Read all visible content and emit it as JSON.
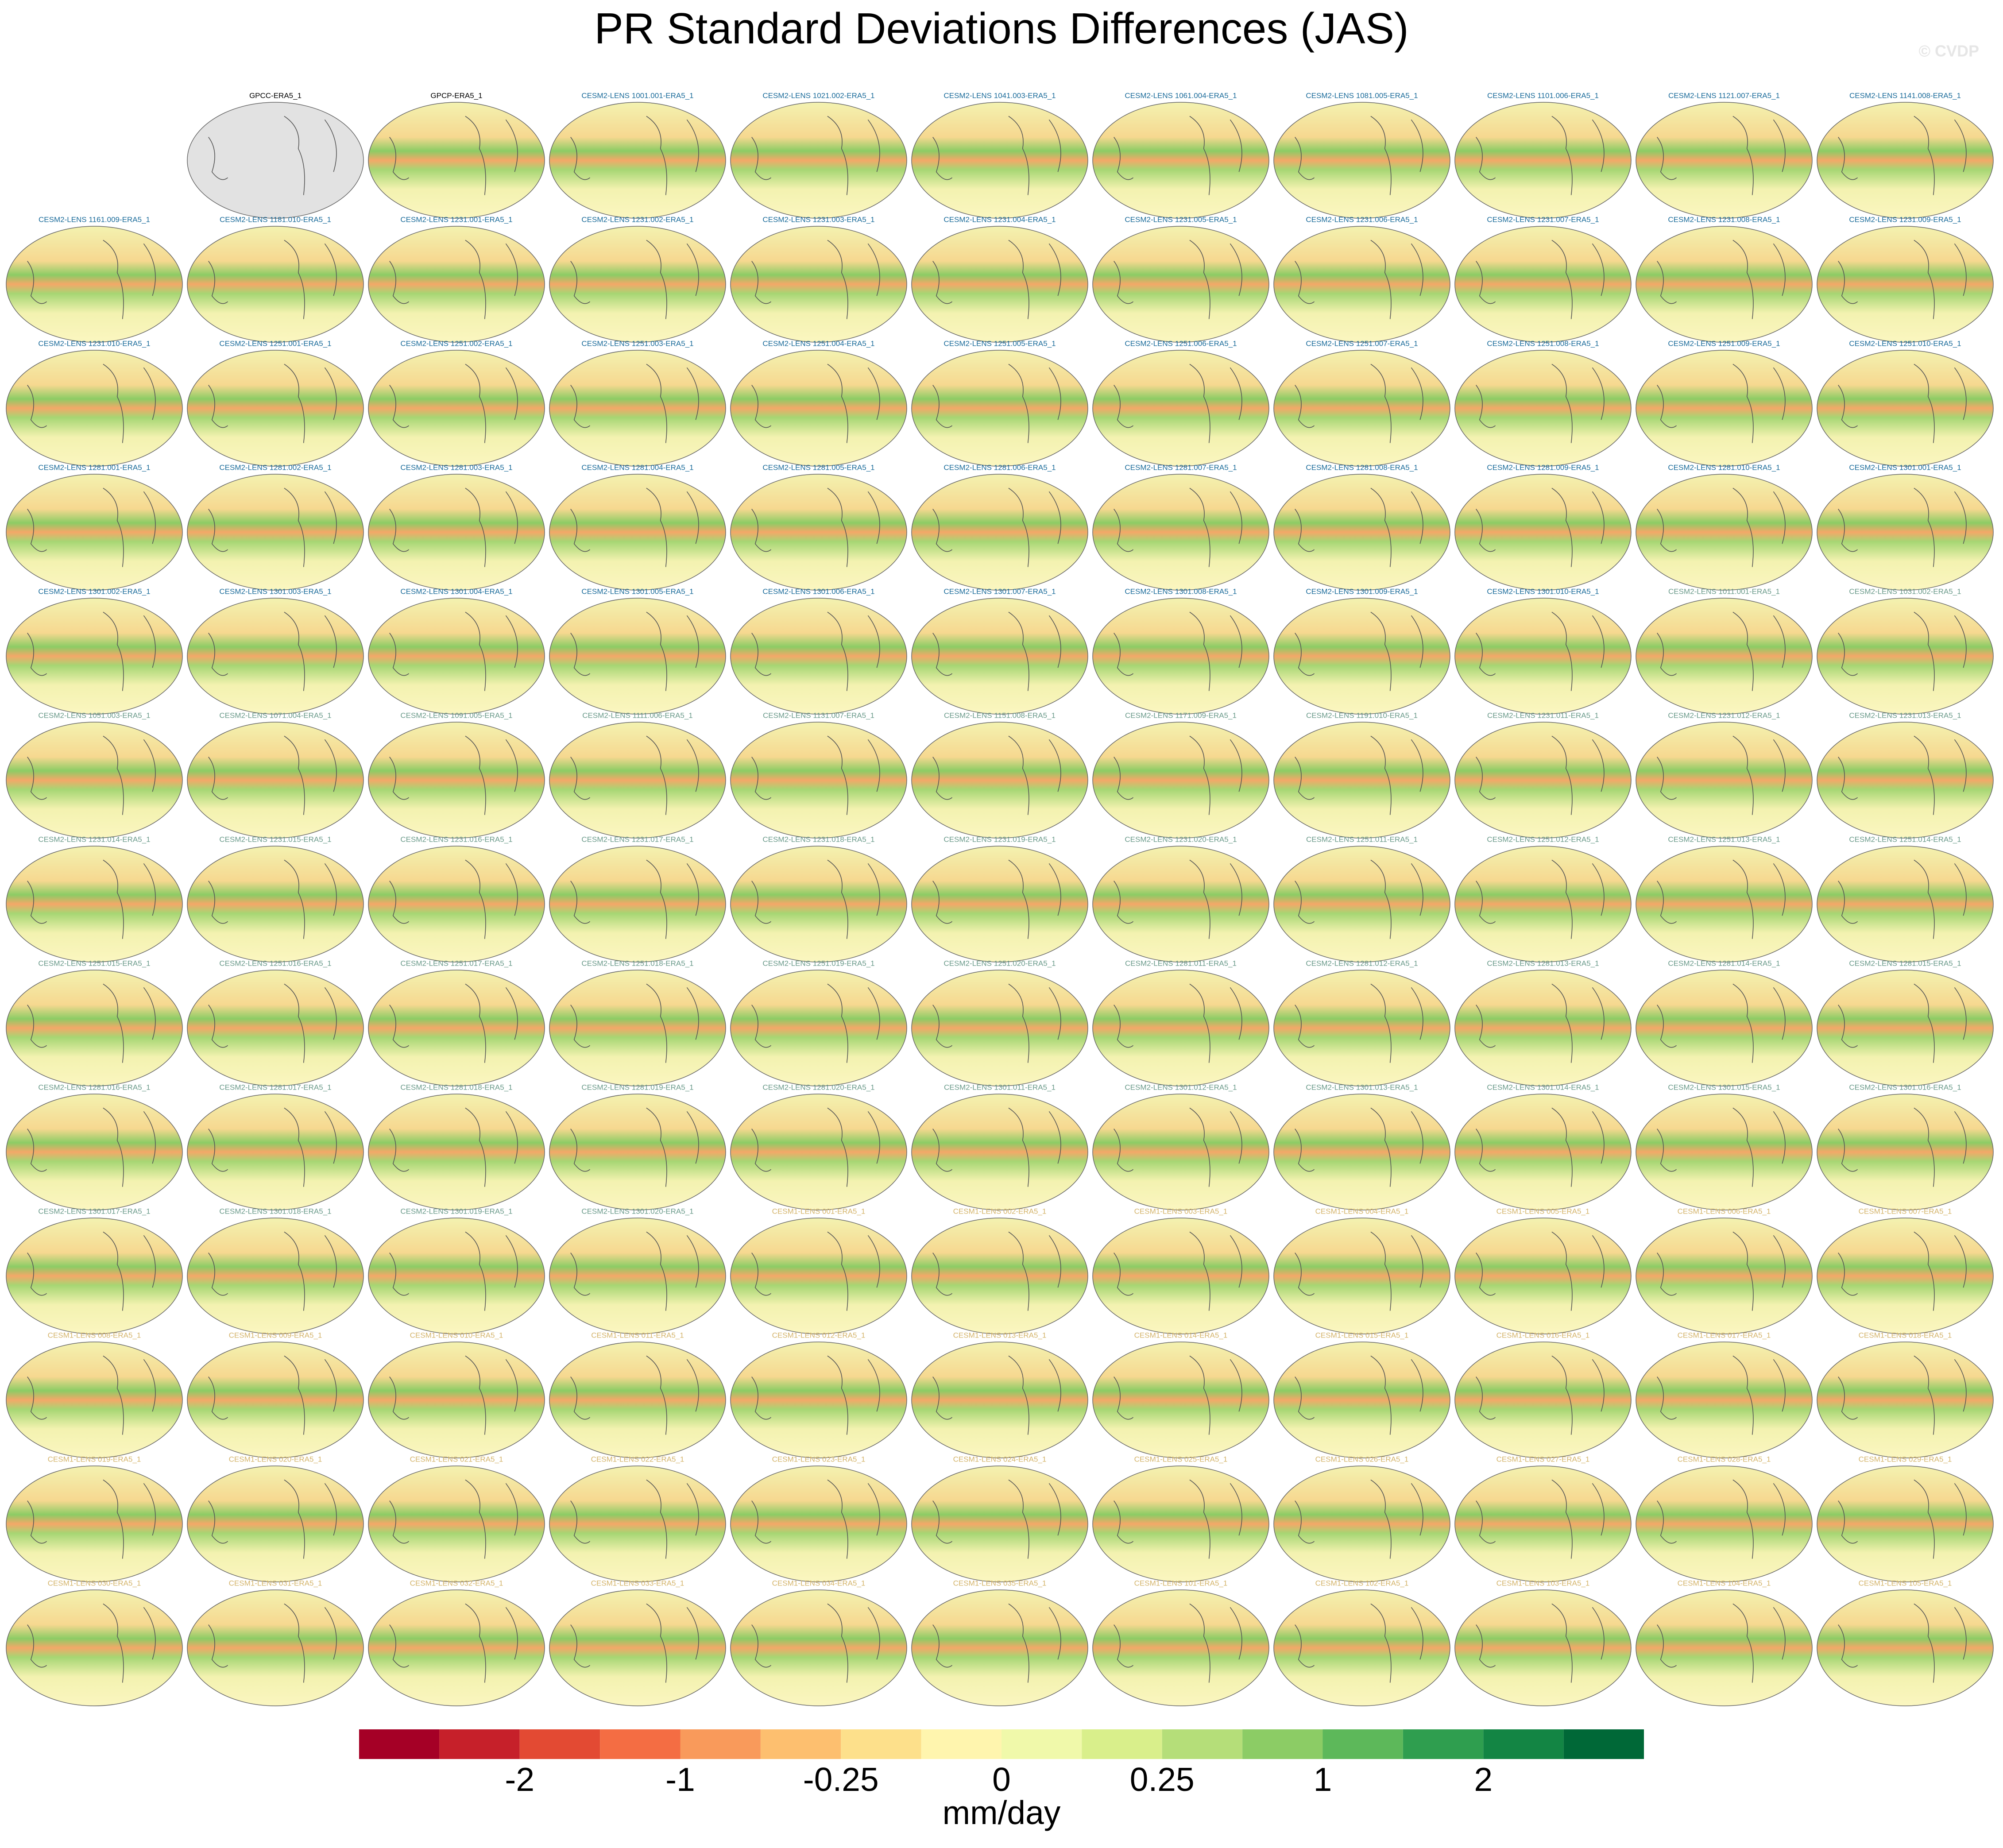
{
  "chart_data": {
    "type": "map-grid",
    "title": "PR Standard Deviations Differences (JAS)",
    "watermark": "© CVDP",
    "columns": 11,
    "first_row_offset": 1,
    "panels": [
      {
        "title": "GPCC-ERA5_1",
        "color": "#000000"
      },
      {
        "title": "GPCP-ERA5_1",
        "color": "#000000"
      },
      {
        "title": "CESM2-LENS 1001.001-ERA5_1",
        "color": "#1a6b9a"
      },
      {
        "title": "CESM2-LENS 1021.002-ERA5_1",
        "color": "#1a6b9a"
      },
      {
        "title": "CESM2-LENS 1041.003-ERA5_1",
        "color": "#1a6b9a"
      },
      {
        "title": "CESM2-LENS 1061.004-ERA5_1",
        "color": "#1a6b9a"
      },
      {
        "title": "CESM2-LENS 1081.005-ERA5_1",
        "color": "#1a6b9a"
      },
      {
        "title": "CESM2-LENS 1101.006-ERA5_1",
        "color": "#1a6b9a"
      },
      {
        "title": "CESM2-LENS 1121.007-ERA5_1",
        "color": "#1a6b9a"
      },
      {
        "title": "CESM2-LENS 1141.008-ERA5_1",
        "color": "#1a6b9a"
      },
      {
        "title": "CESM2-LENS 1161.009-ERA5_1",
        "color": "#1a6b9a"
      },
      {
        "title": "CESM2-LENS 1181.010-ERA5_1",
        "color": "#1a6b9a"
      },
      {
        "title": "CESM2-LENS 1231.001-ERA5_1",
        "color": "#1a6b9a"
      },
      {
        "title": "CESM2-LENS 1231.002-ERA5_1",
        "color": "#1a6b9a"
      },
      {
        "title": "CESM2-LENS 1231.003-ERA5_1",
        "color": "#1a6b9a"
      },
      {
        "title": "CESM2-LENS 1231.004-ERA5_1",
        "color": "#1a6b9a"
      },
      {
        "title": "CESM2-LENS 1231.005-ERA5_1",
        "color": "#1a6b9a"
      },
      {
        "title": "CESM2-LENS 1231.006-ERA5_1",
        "color": "#1a6b9a"
      },
      {
        "title": "CESM2-LENS 1231.007-ERA5_1",
        "color": "#1a6b9a"
      },
      {
        "title": "CESM2-LENS 1231.008-ERA5_1",
        "color": "#1a6b9a"
      },
      {
        "title": "CESM2-LENS 1231.009-ERA5_1",
        "color": "#1a6b9a"
      },
      {
        "title": "CESM2-LENS 1231.010-ERA5_1",
        "color": "#1a6b9a"
      },
      {
        "title": "CESM2-LENS 1251.001-ERA5_1",
        "color": "#1a6b9a"
      },
      {
        "title": "CESM2-LENS 1251.002-ERA5_1",
        "color": "#1a6b9a"
      },
      {
        "title": "CESM2-LENS 1251.003-ERA5_1",
        "color": "#1a6b9a"
      },
      {
        "title": "CESM2-LENS 1251.004-ERA5_1",
        "color": "#1a6b9a"
      },
      {
        "title": "CESM2-LENS 1251.005-ERA5_1",
        "color": "#1a6b9a"
      },
      {
        "title": "CESM2-LENS 1251.006-ERA5_1",
        "color": "#1a6b9a"
      },
      {
        "title": "CESM2-LENS 1251.007-ERA5_1",
        "color": "#1a6b9a"
      },
      {
        "title": "CESM2-LENS 1251.008-ERA5_1",
        "color": "#1a6b9a"
      },
      {
        "title": "CESM2-LENS 1251.009-ERA5_1",
        "color": "#1a6b9a"
      },
      {
        "title": "CESM2-LENS 1251.010-ERA5_1",
        "color": "#1a6b9a"
      },
      {
        "title": "CESM2-LENS 1281.001-ERA5_1",
        "color": "#1a6b9a"
      },
      {
        "title": "CESM2-LENS 1281.002-ERA5_1",
        "color": "#1a6b9a"
      },
      {
        "title": "CESM2-LENS 1281.003-ERA5_1",
        "color": "#1a6b9a"
      },
      {
        "title": "CESM2-LENS 1281.004-ERA5_1",
        "color": "#1a6b9a"
      },
      {
        "title": "CESM2-LENS 1281.005-ERA5_1",
        "color": "#1a6b9a"
      },
      {
        "title": "CESM2-LENS 1281.006-ERA5_1",
        "color": "#1a6b9a"
      },
      {
        "title": "CESM2-LENS 1281.007-ERA5_1",
        "color": "#1a6b9a"
      },
      {
        "title": "CESM2-LENS 1281.008-ERA5_1",
        "color": "#1a6b9a"
      },
      {
        "title": "CESM2-LENS 1281.009-ERA5_1",
        "color": "#1a6b9a"
      },
      {
        "title": "CESM2-LENS 1281.010-ERA5_1",
        "color": "#1a6b9a"
      },
      {
        "title": "CESM2-LENS 1301.001-ERA5_1",
        "color": "#1a6b9a"
      },
      {
        "title": "CESM2-LENS 1301.002-ERA5_1",
        "color": "#1a6b9a"
      },
      {
        "title": "CESM2-LENS 1301.003-ERA5_1",
        "color": "#1a6b9a"
      },
      {
        "title": "CESM2-LENS 1301.004-ERA5_1",
        "color": "#1a6b9a"
      },
      {
        "title": "CESM2-LENS 1301.005-ERA5_1",
        "color": "#1a6b9a"
      },
      {
        "title": "CESM2-LENS 1301.006-ERA5_1",
        "color": "#1a6b9a"
      },
      {
        "title": "CESM2-LENS 1301.007-ERA5_1",
        "color": "#1a6b9a"
      },
      {
        "title": "CESM2-LENS 1301.008-ERA5_1",
        "color": "#1a6b9a"
      },
      {
        "title": "CESM2-LENS 1301.009-ERA5_1",
        "color": "#1a6b9a"
      },
      {
        "title": "CESM2-LENS 1301.010-ERA5_1",
        "color": "#1a6b9a"
      },
      {
        "title": "CESM2-LENS 1011.001-ERA5_1",
        "color": "#6a9a8a"
      },
      {
        "title": "CESM2-LENS 1031.002-ERA5_1",
        "color": "#6a9a8a"
      },
      {
        "title": "CESM2-LENS 1051.003-ERA5_1",
        "color": "#6a9a8a"
      },
      {
        "title": "CESM2-LENS 1071.004-ERA5_1",
        "color": "#6a9a8a"
      },
      {
        "title": "CESM2-LENS 1091.005-ERA5_1",
        "color": "#6a9a8a"
      },
      {
        "title": "CESM2-LENS 1111.006-ERA5_1",
        "color": "#6a9a8a"
      },
      {
        "title": "CESM2-LENS 1131.007-ERA5_1",
        "color": "#6a9a8a"
      },
      {
        "title": "CESM2-LENS 1151.008-ERA5_1",
        "color": "#6a9a8a"
      },
      {
        "title": "CESM2-LENS 1171.009-ERA5_1",
        "color": "#6a9a8a"
      },
      {
        "title": "CESM2-LENS 1191.010-ERA5_1",
        "color": "#6a9a8a"
      },
      {
        "title": "CESM2-LENS 1231.011-ERA5_1",
        "color": "#6a9a8a"
      },
      {
        "title": "CESM2-LENS 1231.012-ERA5_1",
        "color": "#6a9a8a"
      },
      {
        "title": "CESM2-LENS 1231.013-ERA5_1",
        "color": "#6a9a8a"
      },
      {
        "title": "CESM2-LENS 1231.014-ERA5_1",
        "color": "#6a9a8a"
      },
      {
        "title": "CESM2-LENS 1231.015-ERA5_1",
        "color": "#6a9a8a"
      },
      {
        "title": "CESM2-LENS 1231.016-ERA5_1",
        "color": "#6a9a8a"
      },
      {
        "title": "CESM2-LENS 1231.017-ERA5_1",
        "color": "#6a9a8a"
      },
      {
        "title": "CESM2-LENS 1231.018-ERA5_1",
        "color": "#6a9a8a"
      },
      {
        "title": "CESM2-LENS 1231.019-ERA5_1",
        "color": "#6a9a8a"
      },
      {
        "title": "CESM2-LENS 1231.020-ERA5_1",
        "color": "#6a9a8a"
      },
      {
        "title": "CESM2-LENS 1251.011-ERA5_1",
        "color": "#6a9a8a"
      },
      {
        "title": "CESM2-LENS 1251.012-ERA5_1",
        "color": "#6a9a8a"
      },
      {
        "title": "CESM2-LENS 1251.013-ERA5_1",
        "color": "#6a9a8a"
      },
      {
        "title": "CESM2-LENS 1251.014-ERA5_1",
        "color": "#6a9a8a"
      },
      {
        "title": "CESM2-LENS 1251.015-ERA5_1",
        "color": "#6a9a8a"
      },
      {
        "title": "CESM2-LENS 1251.016-ERA5_1",
        "color": "#6a9a8a"
      },
      {
        "title": "CESM2-LENS 1251.017-ERA5_1",
        "color": "#6a9a8a"
      },
      {
        "title": "CESM2-LENS 1251.018-ERA5_1",
        "color": "#6a9a8a"
      },
      {
        "title": "CESM2-LENS 1251.019-ERA5_1",
        "color": "#6a9a8a"
      },
      {
        "title": "CESM2-LENS 1251.020-ERA5_1",
        "color": "#6a9a8a"
      },
      {
        "title": "CESM2-LENS 1281.011-ERA5_1",
        "color": "#6a9a8a"
      },
      {
        "title": "CESM2-LENS 1281.012-ERA5_1",
        "color": "#6a9a8a"
      },
      {
        "title": "CESM2-LENS 1281.013-ERA5_1",
        "color": "#6a9a8a"
      },
      {
        "title": "CESM2-LENS 1281.014-ERA5_1",
        "color": "#6a9a8a"
      },
      {
        "title": "CESM2-LENS 1281.015-ERA5_1",
        "color": "#6a9a8a"
      },
      {
        "title": "CESM2-LENS 1281.016-ERA5_1",
        "color": "#6a9a8a"
      },
      {
        "title": "CESM2-LENS 1281.017-ERA5_1",
        "color": "#6a9a8a"
      },
      {
        "title": "CESM2-LENS 1281.018-ERA5_1",
        "color": "#6a9a8a"
      },
      {
        "title": "CESM2-LENS 1281.019-ERA5_1",
        "color": "#6a9a8a"
      },
      {
        "title": "CESM2-LENS 1281.020-ERA5_1",
        "color": "#6a9a8a"
      },
      {
        "title": "CESM2-LENS 1301.011-ERA5_1",
        "color": "#6a9a8a"
      },
      {
        "title": "CESM2-LENS 1301.012-ERA5_1",
        "color": "#6a9a8a"
      },
      {
        "title": "CESM2-LENS 1301.013-ERA5_1",
        "color": "#6a9a8a"
      },
      {
        "title": "CESM2-LENS 1301.014-ERA5_1",
        "color": "#6a9a8a"
      },
      {
        "title": "CESM2-LENS 1301.015-ERA5_1",
        "color": "#6a9a8a"
      },
      {
        "title": "CESM2-LENS 1301.016-ERA5_1",
        "color": "#6a9a8a"
      },
      {
        "title": "CESM2-LENS 1301.017-ERA5_1",
        "color": "#6a9a8a"
      },
      {
        "title": "CESM2-LENS 1301.018-ERA5_1",
        "color": "#6a9a8a"
      },
      {
        "title": "CESM2-LENS 1301.019-ERA5_1",
        "color": "#6a9a8a"
      },
      {
        "title": "CESM2-LENS 1301.020-ERA5_1",
        "color": "#6a9a8a"
      },
      {
        "title": "CESM1-LENS 001-ERA5_1",
        "color": "#d4b46a"
      },
      {
        "title": "CESM1-LENS 002-ERA5_1",
        "color": "#d4b46a"
      },
      {
        "title": "CESM1-LENS 003-ERA5_1",
        "color": "#d4b46a"
      },
      {
        "title": "CESM1-LENS 004-ERA5_1",
        "color": "#d4b46a"
      },
      {
        "title": "CESM1-LENS 005-ERA5_1",
        "color": "#d4b46a"
      },
      {
        "title": "CESM1-LENS 006-ERA5_1",
        "color": "#d4b46a"
      },
      {
        "title": "CESM1-LENS 007-ERA5_1",
        "color": "#d4b46a"
      },
      {
        "title": "CESM1-LENS 008-ERA5_1",
        "color": "#d4b46a"
      },
      {
        "title": "CESM1-LENS 009-ERA5_1",
        "color": "#d4b46a"
      },
      {
        "title": "CESM1-LENS 010-ERA5_1",
        "color": "#d4b46a"
      },
      {
        "title": "CESM1-LENS 011-ERA5_1",
        "color": "#d4b46a"
      },
      {
        "title": "CESM1-LENS 012-ERA5_1",
        "color": "#d4b46a"
      },
      {
        "title": "CESM1-LENS 013-ERA5_1",
        "color": "#d4b46a"
      },
      {
        "title": "CESM1-LENS 014-ERA5_1",
        "color": "#d4b46a"
      },
      {
        "title": "CESM1-LENS 015-ERA5_1",
        "color": "#d4b46a"
      },
      {
        "title": "CESM1-LENS 016-ERA5_1",
        "color": "#d4b46a"
      },
      {
        "title": "CESM1-LENS 017-ERA5_1",
        "color": "#d4b46a"
      },
      {
        "title": "CESM1-LENS 018-ERA5_1",
        "color": "#d4b46a"
      },
      {
        "title": "CESM1-LENS 019-ERA5_1",
        "color": "#d4b46a"
      },
      {
        "title": "CESM1-LENS 020-ERA5_1",
        "color": "#d4b46a"
      },
      {
        "title": "CESM1-LENS 021-ERA5_1",
        "color": "#d4b46a"
      },
      {
        "title": "CESM1-LENS 022-ERA5_1",
        "color": "#d4b46a"
      },
      {
        "title": "CESM1-LENS 023-ERA5_1",
        "color": "#d4b46a"
      },
      {
        "title": "CESM1-LENS 024-ERA5_1",
        "color": "#d4b46a"
      },
      {
        "title": "CESM1-LENS 025-ERA5_1",
        "color": "#d4b46a"
      },
      {
        "title": "CESM1-LENS 026-ERA5_1",
        "color": "#d4b46a"
      },
      {
        "title": "CESM1-LENS 027-ERA5_1",
        "color": "#d4b46a"
      },
      {
        "title": "CESM1-LENS 028-ERA5_1",
        "color": "#d4b46a"
      },
      {
        "title": "CESM1-LENS 029-ERA5_1",
        "color": "#d4b46a"
      },
      {
        "title": "CESM1-LENS 030-ERA5_1",
        "color": "#d4b46a"
      },
      {
        "title": "CESM1-LENS 031-ERA5_1",
        "color": "#d4b46a"
      },
      {
        "title": "CESM1-LENS 032-ERA5_1",
        "color": "#d4b46a"
      },
      {
        "title": "CESM1-LENS 033-ERA5_1",
        "color": "#d4b46a"
      },
      {
        "title": "CESM1-LENS 034-ERA5_1",
        "color": "#d4b46a"
      },
      {
        "title": "CESM1-LENS 035-ERA5_1",
        "color": "#d4b46a"
      },
      {
        "title": "CESM1-LENS 101-ERA5_1",
        "color": "#d4b46a"
      },
      {
        "title": "CESM1-LENS 102-ERA5_1",
        "color": "#d4b46a"
      },
      {
        "title": "CESM1-LENS 103-ERA5_1",
        "color": "#d4b46a"
      },
      {
        "title": "CESM1-LENS 104-ERA5_1",
        "color": "#d4b46a"
      },
      {
        "title": "CESM1-LENS 105-ERA5_1",
        "color": "#d4b46a"
      }
    ],
    "colorbar": {
      "colors": [
        "#a50026",
        "#c6202a",
        "#e34a33",
        "#f46d43",
        "#f99a5b",
        "#fdbf6f",
        "#fde08b",
        "#fff5ae",
        "#f0f9aa",
        "#d9ef8b",
        "#b5de79",
        "#8ccc65",
        "#5db85a",
        "#2f9e4f",
        "#138544",
        "#006837"
      ],
      "ticks": [
        -2,
        -1,
        -0.25,
        0,
        0.25,
        1,
        2
      ],
      "label": "mm/day"
    }
  }
}
